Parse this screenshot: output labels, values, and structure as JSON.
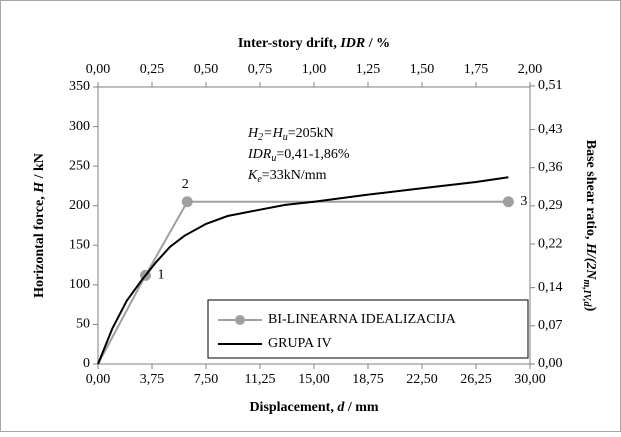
{
  "chart_data": {
    "type": "line",
    "x_label": [
      {
        "t": "Displacement, "
      },
      {
        "t": "d",
        "i": true
      },
      {
        "t": " / mm"
      }
    ],
    "x2_label": [
      {
        "t": "Inter-story drift, "
      },
      {
        "t": "IDR",
        "i": true
      },
      {
        "t": " / %"
      }
    ],
    "y_label": [
      {
        "t": "Horizontal force, "
      },
      {
        "t": "H",
        "i": true
      },
      {
        "t": " / kN"
      }
    ],
    "y2_label": [
      {
        "t": "Base shear ratio, "
      },
      {
        "t": "H/(2N",
        "i": true
      },
      {
        "t": "m,IV,d",
        "i": true,
        "sub": true
      },
      {
        "t": ")"
      }
    ],
    "annotations": [
      [
        {
          "t": "H",
          "i": true
        },
        {
          "t": "2",
          "i": true,
          "sub": true
        },
        {
          "t": "=",
          "i": true
        },
        {
          "t": "H",
          "i": true
        },
        {
          "t": "u",
          "i": true,
          "sub": true
        },
        {
          "t": "=205kN"
        }
      ],
      [
        {
          "t": "IDR",
          "i": true
        },
        {
          "t": "u",
          "i": true,
          "sub": true
        },
        {
          "t": "=0,41-1,86%"
        }
      ],
      [
        {
          "t": "K",
          "i": true
        },
        {
          "t": "e",
          "i": true,
          "sub": true
        },
        {
          "t": "=33kN/mm"
        }
      ]
    ],
    "xlim": [
      0,
      30
    ],
    "xticks": [
      {
        "value": 0,
        "label": "0,00"
      },
      {
        "value": 3.75,
        "label": "3,75"
      },
      {
        "value": 7.5,
        "label": "7,50"
      },
      {
        "value": 11.25,
        "label": "11,25"
      },
      {
        "value": 15,
        "label": "15,00"
      },
      {
        "value": 18.75,
        "label": "18,75"
      },
      {
        "value": 22.5,
        "label": "22,50"
      },
      {
        "value": 26.25,
        "label": "26,25"
      },
      {
        "value": 30,
        "label": "30,00"
      }
    ],
    "x2lim": [
      0,
      2
    ],
    "x2ticks": [
      {
        "value": 0,
        "label": "0,00"
      },
      {
        "value": 0.25,
        "label": "0,25"
      },
      {
        "value": 0.5,
        "label": "0,50"
      },
      {
        "value": 0.75,
        "label": "0,75"
      },
      {
        "value": 1,
        "label": "1,00"
      },
      {
        "value": 1.25,
        "label": "1,25"
      },
      {
        "value": 1.5,
        "label": "1,50"
      },
      {
        "value": 1.75,
        "label": "1,75"
      },
      {
        "value": 2,
        "label": "2,00"
      }
    ],
    "ylim": [
      0,
      350
    ],
    "yticks": [
      0,
      50,
      100,
      150,
      200,
      250,
      300,
      350
    ],
    "y2lim": [
      0,
      0.508
    ],
    "y2ticks": [
      {
        "value": 0,
        "label": "0,00"
      },
      {
        "value": 0.07,
        "label": "0,07"
      },
      {
        "value": 0.14,
        "label": "0,14"
      },
      {
        "value": 0.22,
        "label": "0,22"
      },
      {
        "value": 0.29,
        "label": "0,29"
      },
      {
        "value": 0.36,
        "label": "0,36"
      },
      {
        "value": 0.43,
        "label": "0,43"
      },
      {
        "value": 0.51,
        "label": "0,51"
      }
    ],
    "grid": false,
    "legend": "lower right",
    "series": [
      {
        "name": "BI-LINEARNA IDEALIZACIJA",
        "color": "#a0a0a0",
        "marker": "circle",
        "x": [
          0,
          3.3,
          6.2,
          28.5
        ],
        "values": [
          0,
          112,
          205,
          205
        ],
        "point_labels": [
          null,
          "1",
          "2",
          "3"
        ]
      },
      {
        "name": "GRUPA IV",
        "color": "#000000",
        "x": [
          0,
          1,
          2,
          3,
          4,
          5,
          6,
          7.5,
          9,
          11.25,
          13,
          15,
          18.75,
          22.5,
          26.25,
          28.5
        ],
        "values": [
          0,
          45,
          80,
          105,
          128,
          148,
          162,
          177,
          187,
          195,
          201,
          205,
          214,
          222,
          230,
          236
        ]
      }
    ]
  }
}
